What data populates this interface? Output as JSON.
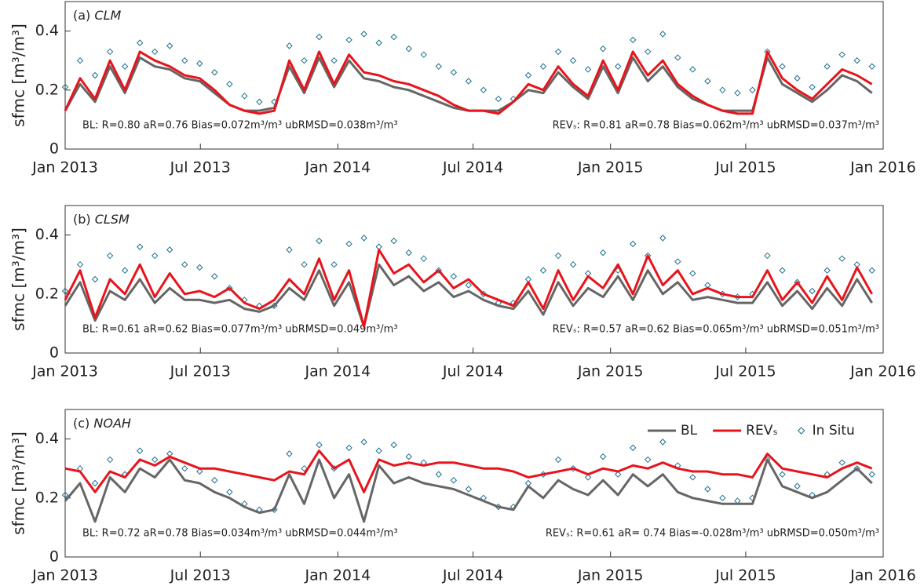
{
  "chart_data": [
    {
      "type": "line",
      "panel_label": "(a)",
      "title": "CLM",
      "ylabel": "sfmc [m³/m³]",
      "x": [
        0,
        20,
        40,
        60,
        80,
        100,
        120,
        140,
        160,
        180,
        200,
        220,
        240,
        260,
        280,
        300,
        320,
        340,
        360,
        380,
        400,
        420,
        440,
        460,
        480,
        500,
        520,
        540,
        560,
        580,
        600,
        620,
        640,
        660,
        680,
        700,
        720,
        740,
        760,
        780,
        800,
        820,
        840,
        860,
        880,
        900,
        920,
        940,
        960,
        980,
        1000,
        1020,
        1040,
        1060,
        1080
      ],
      "xlim": [
        0,
        1095
      ],
      "xticks": [
        {
          "value": 0,
          "label": "Jan 2013"
        },
        {
          "value": 181,
          "label": "Jul 2013"
        },
        {
          "value": 365,
          "label": "Jan 2014"
        },
        {
          "value": 546,
          "label": "Jul 2014"
        },
        {
          "value": 730,
          "label": "Jan 2015"
        },
        {
          "value": 911,
          "label": "Jul 2015"
        },
        {
          "value": 1095,
          "label": "Jan 2016"
        }
      ],
      "ylim": [
        0,
        0.5
      ],
      "yticks": [
        0,
        0.2,
        0.4
      ],
      "series": [
        {
          "color": "#666666",
          "values": [
            0.13,
            0.22,
            0.16,
            0.28,
            0.19,
            0.31,
            0.28,
            0.27,
            0.24,
            0.23,
            0.19,
            0.15,
            0.13,
            0.13,
            0.14,
            0.28,
            0.19,
            0.31,
            0.21,
            0.3,
            0.24,
            0.23,
            0.21,
            0.2,
            0.18,
            0.16,
            0.14,
            0.13,
            0.13,
            0.13,
            0.16,
            0.2,
            0.19,
            0.26,
            0.21,
            0.17,
            0.28,
            0.19,
            0.31,
            0.23,
            0.28,
            0.21,
            0.17,
            0.15,
            0.13,
            0.13,
            0.13,
            0.31,
            0.22,
            0.19,
            0.16,
            0.2,
            0.25,
            0.23,
            0.19
          ]
        },
        {
          "color": "#e8141c",
          "values": [
            0.13,
            0.24,
            0.17,
            0.3,
            0.2,
            0.33,
            0.3,
            0.28,
            0.25,
            0.24,
            0.2,
            0.15,
            0.13,
            0.12,
            0.13,
            0.3,
            0.2,
            0.33,
            0.22,
            0.32,
            0.26,
            0.25,
            0.23,
            0.22,
            0.2,
            0.18,
            0.15,
            0.13,
            0.13,
            0.12,
            0.16,
            0.22,
            0.2,
            0.28,
            0.22,
            0.18,
            0.3,
            0.2,
            0.33,
            0.25,
            0.3,
            0.22,
            0.18,
            0.15,
            0.13,
            0.12,
            0.12,
            0.33,
            0.24,
            0.2,
            0.17,
            0.22,
            0.27,
            0.25,
            0.22
          ]
        },
        {
          "color": "#1f6f8f",
          "style": "marker",
          "values": [
            0.21,
            0.3,
            0.25,
            0.33,
            0.28,
            0.36,
            0.33,
            0.35,
            0.3,
            0.29,
            0.26,
            0.22,
            0.18,
            0.16,
            0.16,
            0.35,
            0.3,
            0.38,
            0.3,
            0.37,
            0.39,
            0.36,
            0.38,
            0.34,
            0.32,
            0.28,
            0.26,
            0.23,
            0.2,
            0.17,
            0.17,
            0.25,
            0.28,
            0.33,
            0.3,
            0.27,
            0.34,
            0.28,
            0.37,
            0.33,
            0.39,
            0.31,
            0.27,
            0.23,
            0.2,
            0.19,
            0.2,
            0.33,
            0.28,
            0.24,
            0.21,
            0.28,
            0.32,
            0.3,
            0.28
          ]
        }
      ],
      "annotations": [
        "BL: R=0.80 aR=0.76  Bias=0.072m³/m³ ubRMSD=0.038m³/m³",
        "REVₛ: R=0.81 aR=0.78  Bias=0.062m³/m³ ubRMSD=0.037m³/m³"
      ]
    },
    {
      "type": "line",
      "panel_label": "(b)",
      "title": "CLSM",
      "ylabel": "sfmc [m³/m³]",
      "x": [
        0,
        20,
        40,
        60,
        80,
        100,
        120,
        140,
        160,
        180,
        200,
        220,
        240,
        260,
        280,
        300,
        320,
        340,
        360,
        380,
        400,
        420,
        440,
        460,
        480,
        500,
        520,
        540,
        560,
        580,
        600,
        620,
        640,
        660,
        680,
        700,
        720,
        740,
        760,
        780,
        800,
        820,
        840,
        860,
        880,
        900,
        920,
        940,
        960,
        980,
        1000,
        1020,
        1040,
        1060,
        1080
      ],
      "xlim": [
        0,
        1095
      ],
      "xticks": [
        {
          "value": 0,
          "label": "Jan 2013"
        },
        {
          "value": 181,
          "label": "Jul 2013"
        },
        {
          "value": 365,
          "label": "Jan 2014"
        },
        {
          "value": 546,
          "label": "Jul 2014"
        },
        {
          "value": 730,
          "label": "Jan 2015"
        },
        {
          "value": 911,
          "label": "Jul 2015"
        },
        {
          "value": 1095,
          "label": "Jan 2016"
        }
      ],
      "ylim": [
        0,
        0.5
      ],
      "yticks": [
        0,
        0.2,
        0.4
      ],
      "series": [
        {
          "color": "#666666",
          "values": [
            0.16,
            0.24,
            0.11,
            0.21,
            0.18,
            0.25,
            0.17,
            0.22,
            0.18,
            0.18,
            0.17,
            0.18,
            0.15,
            0.14,
            0.16,
            0.22,
            0.18,
            0.28,
            0.16,
            0.24,
            0.09,
            0.3,
            0.23,
            0.26,
            0.21,
            0.24,
            0.19,
            0.21,
            0.18,
            0.16,
            0.15,
            0.21,
            0.13,
            0.24,
            0.16,
            0.22,
            0.19,
            0.26,
            0.18,
            0.28,
            0.2,
            0.24,
            0.18,
            0.19,
            0.18,
            0.17,
            0.17,
            0.24,
            0.16,
            0.21,
            0.15,
            0.22,
            0.16,
            0.25,
            0.17
          ]
        },
        {
          "color": "#e8141c",
          "values": [
            0.18,
            0.28,
            0.12,
            0.25,
            0.2,
            0.3,
            0.19,
            0.27,
            0.2,
            0.21,
            0.19,
            0.22,
            0.17,
            0.15,
            0.18,
            0.25,
            0.2,
            0.32,
            0.18,
            0.28,
            0.09,
            0.35,
            0.27,
            0.3,
            0.24,
            0.28,
            0.22,
            0.25,
            0.2,
            0.18,
            0.16,
            0.24,
            0.15,
            0.28,
            0.18,
            0.26,
            0.22,
            0.3,
            0.2,
            0.33,
            0.23,
            0.28,
            0.2,
            0.22,
            0.2,
            0.19,
            0.19,
            0.28,
            0.18,
            0.24,
            0.17,
            0.26,
            0.18,
            0.29,
            0.2
          ]
        },
        {
          "color": "#1f6f8f",
          "style": "marker",
          "values": [
            0.21,
            0.3,
            0.25,
            0.33,
            0.28,
            0.36,
            0.33,
            0.35,
            0.3,
            0.29,
            0.26,
            0.22,
            0.18,
            0.16,
            0.16,
            0.35,
            0.3,
            0.38,
            0.3,
            0.37,
            0.39,
            0.36,
            0.38,
            0.34,
            0.32,
            0.28,
            0.26,
            0.23,
            0.2,
            0.17,
            0.17,
            0.25,
            0.28,
            0.33,
            0.3,
            0.27,
            0.34,
            0.28,
            0.37,
            0.33,
            0.39,
            0.31,
            0.27,
            0.23,
            0.2,
            0.19,
            0.2,
            0.33,
            0.28,
            0.24,
            0.21,
            0.28,
            0.32,
            0.3,
            0.28
          ]
        }
      ],
      "annotations": [
        "BL: R=0.61 aR=0.62  Bias=0.077m³/m³ ubRMSD=0.049m³/m³",
        "REVₛ: R=0.57 aR=0.62  Bias=0.065m³/m³ ubRMSD=0.051m³/m³"
      ]
    },
    {
      "type": "line",
      "panel_label": "(c)",
      "title": "NOAH",
      "ylabel": "sfmc [m³/m³]",
      "legend": "northeast",
      "x": [
        0,
        20,
        40,
        60,
        80,
        100,
        120,
        140,
        160,
        180,
        200,
        220,
        240,
        260,
        280,
        300,
        320,
        340,
        360,
        380,
        400,
        420,
        440,
        460,
        480,
        500,
        520,
        540,
        560,
        580,
        600,
        620,
        640,
        660,
        680,
        700,
        720,
        740,
        760,
        780,
        800,
        820,
        840,
        860,
        880,
        900,
        920,
        940,
        960,
        980,
        1000,
        1020,
        1040,
        1060,
        1080
      ],
      "xlim": [
        0,
        1095
      ],
      "xticks": [
        {
          "value": 0,
          "label": "Jan 2013"
        },
        {
          "value": 181,
          "label": "Jul 2013"
        },
        {
          "value": 365,
          "label": "Jan 2014"
        },
        {
          "value": 546,
          "label": "Jul 2014"
        },
        {
          "value": 730,
          "label": "Jan 2015"
        },
        {
          "value": 911,
          "label": "Jul 2015"
        },
        {
          "value": 1095,
          "label": "Jan 2016"
        }
      ],
      "ylim": [
        0,
        0.5
      ],
      "yticks": [
        0,
        0.2,
        0.4
      ],
      "series": [
        {
          "name": "BL",
          "color": "#666666",
          "values": [
            0.19,
            0.25,
            0.12,
            0.27,
            0.22,
            0.3,
            0.27,
            0.33,
            0.26,
            0.25,
            0.22,
            0.2,
            0.17,
            0.15,
            0.16,
            0.28,
            0.18,
            0.33,
            0.2,
            0.28,
            0.12,
            0.31,
            0.25,
            0.27,
            0.25,
            0.24,
            0.23,
            0.21,
            0.19,
            0.17,
            0.16,
            0.24,
            0.2,
            0.26,
            0.23,
            0.21,
            0.26,
            0.21,
            0.28,
            0.24,
            0.28,
            0.22,
            0.2,
            0.19,
            0.18,
            0.18,
            0.18,
            0.33,
            0.24,
            0.22,
            0.2,
            0.22,
            0.26,
            0.3,
            0.25
          ]
        },
        {
          "name": "REVₛ",
          "color": "#e8141c",
          "values": [
            0.3,
            0.29,
            0.22,
            0.29,
            0.27,
            0.33,
            0.31,
            0.34,
            0.32,
            0.3,
            0.3,
            0.29,
            0.28,
            0.27,
            0.26,
            0.29,
            0.28,
            0.36,
            0.3,
            0.33,
            0.22,
            0.33,
            0.31,
            0.32,
            0.31,
            0.32,
            0.32,
            0.31,
            0.3,
            0.3,
            0.29,
            0.27,
            0.28,
            0.29,
            0.3,
            0.28,
            0.3,
            0.29,
            0.31,
            0.3,
            0.32,
            0.3,
            0.29,
            0.29,
            0.28,
            0.28,
            0.27,
            0.35,
            0.3,
            0.29,
            0.28,
            0.27,
            0.3,
            0.32,
            0.3
          ]
        },
        {
          "name": "In Situ",
          "color": "#1f6f8f",
          "style": "marker",
          "values": [
            0.21,
            0.3,
            0.25,
            0.33,
            0.28,
            0.36,
            0.33,
            0.35,
            0.3,
            0.29,
            0.26,
            0.22,
            0.18,
            0.16,
            0.16,
            0.35,
            0.3,
            0.38,
            0.3,
            0.37,
            0.39,
            0.36,
            0.38,
            0.34,
            0.32,
            0.28,
            0.26,
            0.23,
            0.2,
            0.17,
            0.17,
            0.25,
            0.28,
            0.33,
            0.3,
            0.27,
            0.34,
            0.28,
            0.37,
            0.33,
            0.39,
            0.31,
            0.27,
            0.23,
            0.2,
            0.19,
            0.2,
            0.33,
            0.28,
            0.24,
            0.21,
            0.28,
            0.32,
            0.3,
            0.28
          ]
        }
      ],
      "annotations": [
        "BL: R=0.72 aR=0.78  Bias=0.034m³/m³ ubRMSD=0.044m³/m³",
        "REVₛ: R=0.61 aR= 0.74  Bias=-0.028m³/m³ ubRMSD=0.050m³/m³"
      ]
    }
  ]
}
